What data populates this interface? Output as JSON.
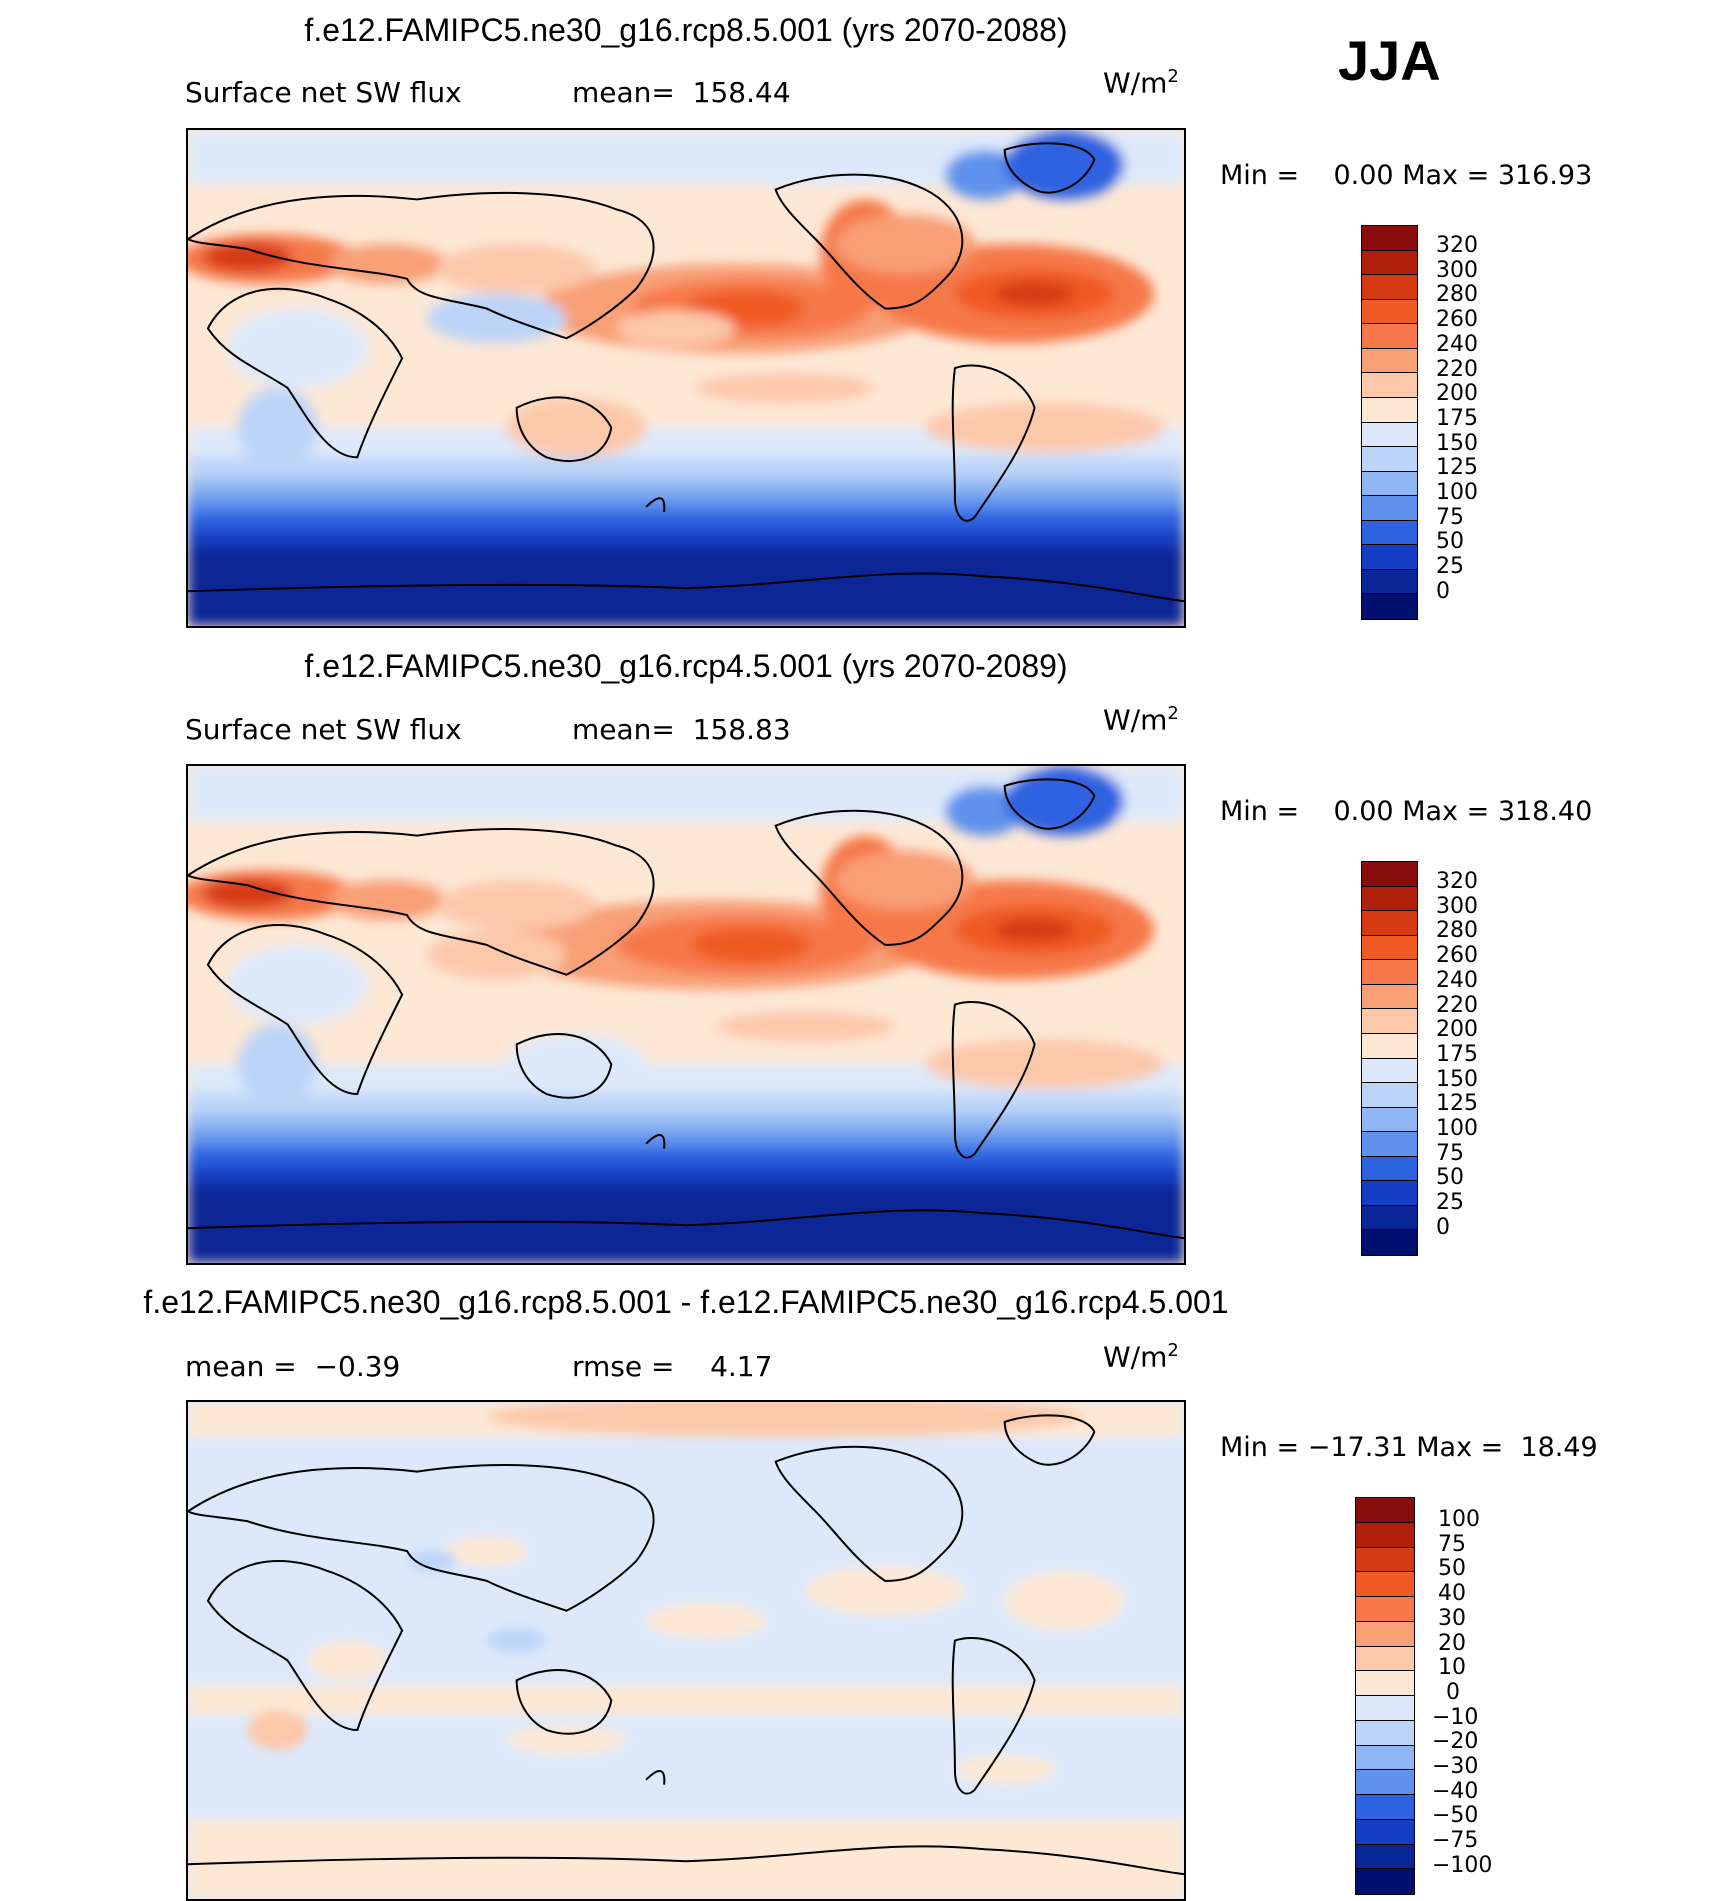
{
  "season": "JJA",
  "panels": [
    {
      "title": "f.e12.FAMIPC5.ne30_g16.rcp8.5.001 (yrs 2070-2088)",
      "left_text": "Surface net SW flux",
      "middle_text": "mean=  158.44",
      "units": "W/m",
      "units_sup": "2",
      "min_label": "Min =",
      "min_value": "0.00",
      "max_label": "Max =",
      "max_value": "316.93",
      "colorbar_labels": [
        "320",
        "300",
        "280",
        "260",
        "240",
        "220",
        "200",
        "175",
        "150",
        "125",
        "100",
        "75",
        "50",
        "25",
        "0"
      ],
      "colorbar_colors": [
        "#8a0d0d",
        "#b01f0a",
        "#d63a12",
        "#ef5a24",
        "#f6784a",
        "#f89f76",
        "#fcc8aa",
        "#fde8d6",
        "#dde9fb",
        "#bcd4f8",
        "#8fb6f2",
        "#5f92ec",
        "#2d62e0",
        "#143fc4",
        "#0a2596",
        "#020f6e"
      ]
    },
    {
      "title": "f.e12.FAMIPC5.ne30_g16.rcp4.5.001 (yrs 2070-2089)",
      "left_text": "Surface net SW flux",
      "middle_text": "mean=  158.83",
      "units": "W/m",
      "units_sup": "2",
      "min_label": "Min =",
      "min_value": "0.00",
      "max_label": "Max =",
      "max_value": "318.40",
      "colorbar_labels": [
        "320",
        "300",
        "280",
        "260",
        "240",
        "220",
        "200",
        "175",
        "150",
        "125",
        "100",
        "75",
        "50",
        "25",
        "0"
      ],
      "colorbar_colors": [
        "#8a0d0d",
        "#b01f0a",
        "#d63a12",
        "#ef5a24",
        "#f6784a",
        "#f89f76",
        "#fcc8aa",
        "#fde8d6",
        "#dde9fb",
        "#bcd4f8",
        "#8fb6f2",
        "#5f92ec",
        "#2d62e0",
        "#143fc4",
        "#0a2596",
        "#020f6e"
      ]
    },
    {
      "title": "f.e12.FAMIPC5.ne30_g16.rcp8.5.001 - f.e12.FAMIPC5.ne30_g16.rcp4.5.001",
      "left_text": "mean =  −0.39",
      "middle_text": "rmse =    4.17",
      "units": "W/m",
      "units_sup": "2",
      "min_label": "Min =",
      "min_value": "−17.31",
      "max_label": "Max =",
      "max_value": "18.49",
      "colorbar_labels": [
        "100",
        "75",
        "50",
        "40",
        "30",
        "20",
        "10",
        "0",
        "−10",
        "−20",
        "−30",
        "−40",
        "−50",
        "−75",
        "−100"
      ],
      "colorbar_colors": [
        "#8a0d0d",
        "#b01f0a",
        "#d63a12",
        "#ef5a24",
        "#f6784a",
        "#f89f76",
        "#fcc8aa",
        "#fde8d6",
        "#dde9fb",
        "#bcd4f8",
        "#8fb6f2",
        "#5f92ec",
        "#2d62e0",
        "#143fc4",
        "#0a2596",
        "#020f6e"
      ]
    }
  ]
}
